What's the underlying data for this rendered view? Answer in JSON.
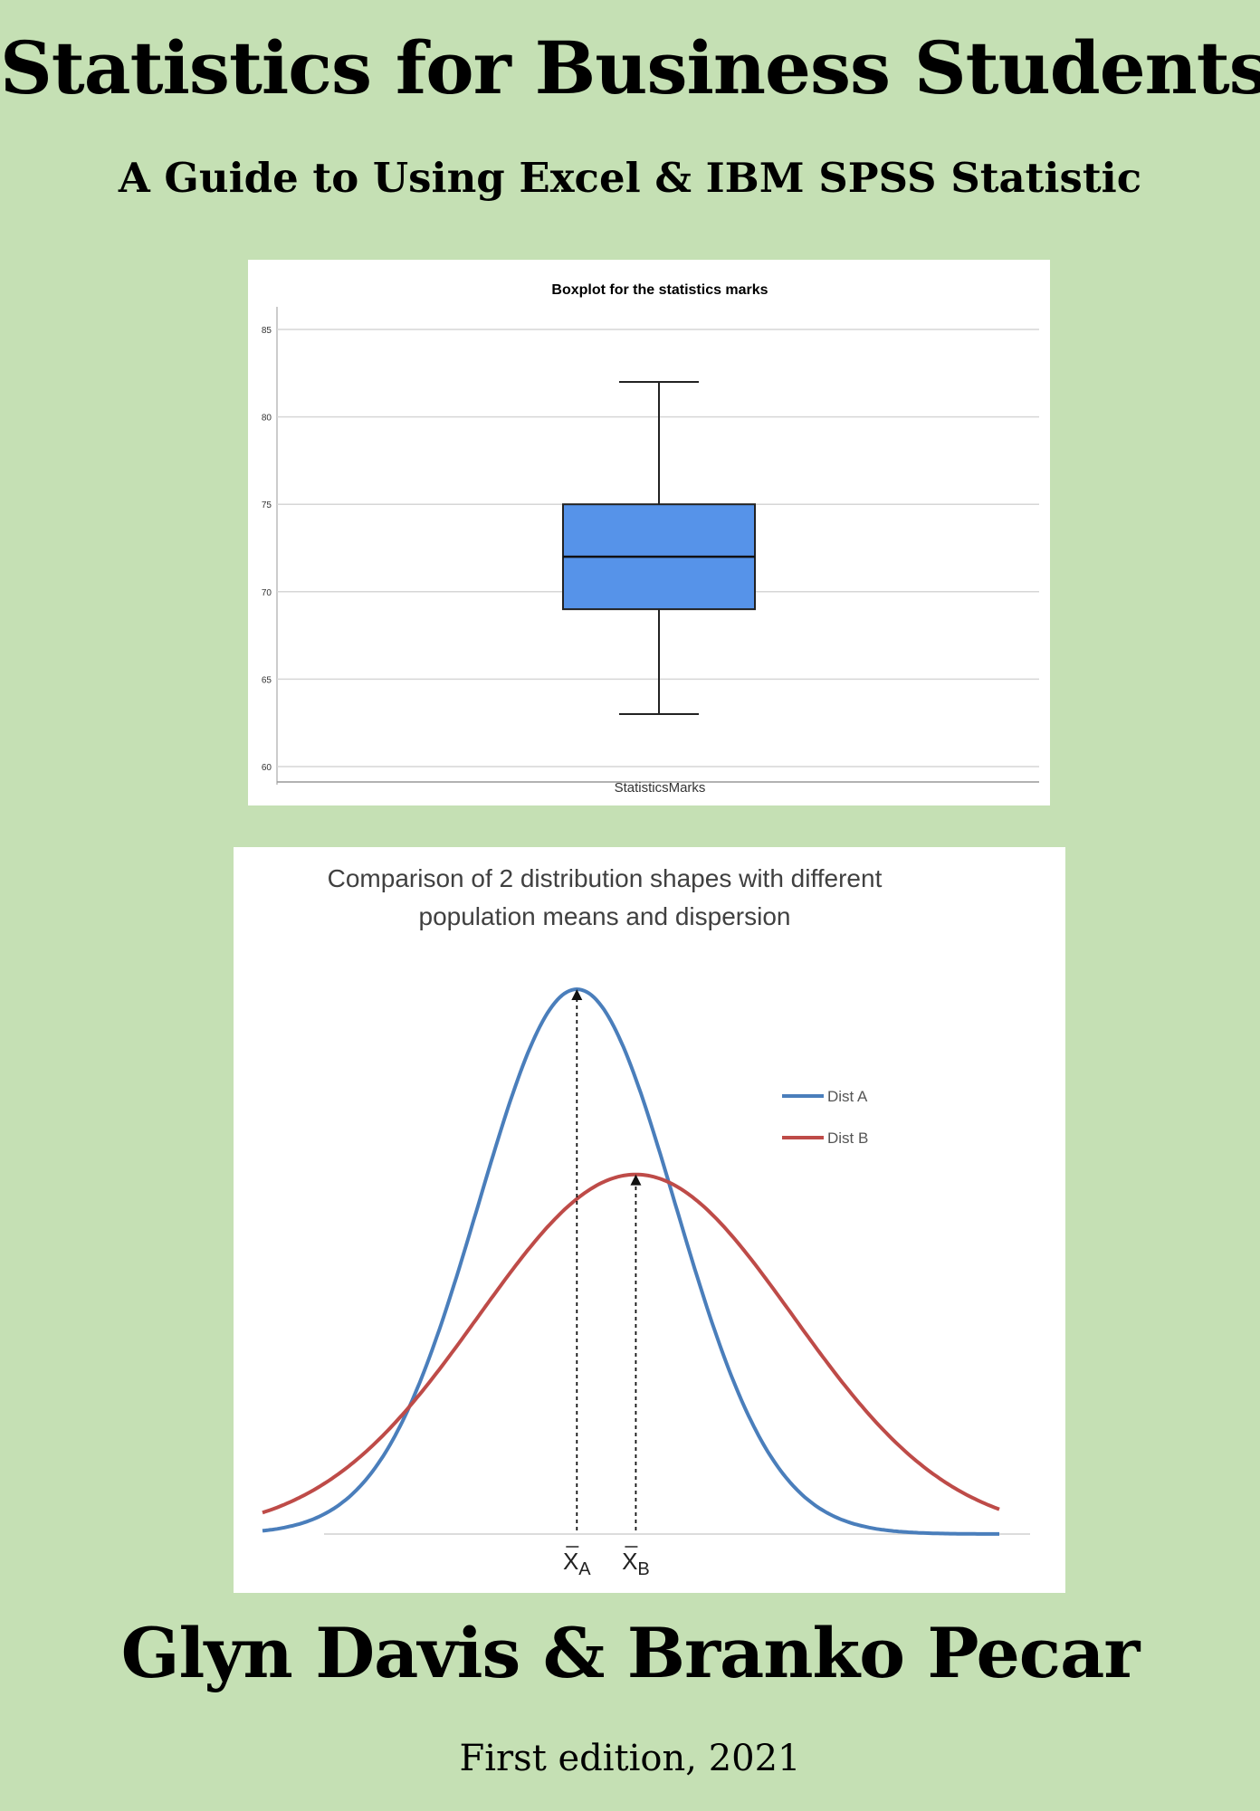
{
  "cover": {
    "title": "Statistics for Business Students",
    "subtitle": "A Guide to Using Excel & IBM SPSS Statistic",
    "authors": "Glyn Davis & Branko Pecar",
    "edition": "First edition, 2021"
  },
  "chart_data": [
    {
      "type": "boxplot",
      "title": "Boxplot for the statistics marks",
      "xlabel": "StatisticsMarks",
      "ylabel": "",
      "ylim": [
        60,
        85
      ],
      "yticks": [
        60,
        65,
        70,
        75,
        80,
        85
      ],
      "grid": true,
      "box": {
        "min": 63,
        "q1": 69,
        "median": 72,
        "q3": 75,
        "max": 82
      },
      "box_color": "#5693e9"
    },
    {
      "type": "line",
      "title": "Comparison of 2 distribution shapes with different population means and dispersion",
      "title_lines": [
        "Comparison of 2 distribution shapes with different",
        "population means and dispersion"
      ],
      "legend_position": "right",
      "series": [
        {
          "name": "Dist A",
          "color": "#4a7ebb",
          "mean": 0,
          "sd": 1,
          "peak": 1.0
        },
        {
          "name": "Dist B",
          "color": "#be4b48",
          "mean": 0.6,
          "sd": 1.6,
          "peak": 0.66
        }
      ],
      "markers": [
        {
          "symbol": "X",
          "sub": "A"
        },
        {
          "symbol": "X",
          "sub": "B"
        }
      ]
    }
  ]
}
